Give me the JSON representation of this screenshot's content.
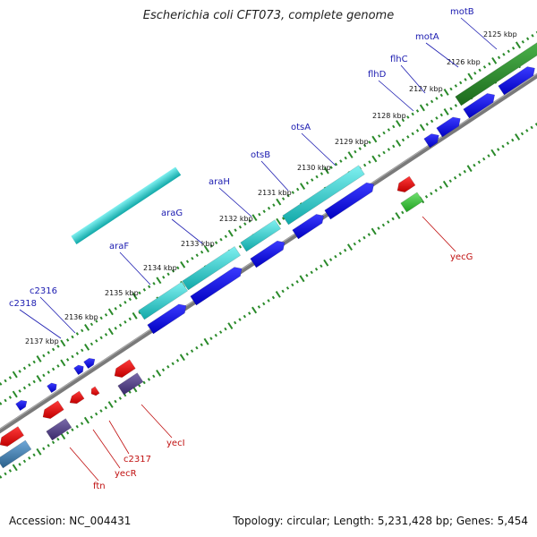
{
  "title": "Escherichia coli CFT073, complete genome",
  "footer": {
    "accession": "Accession: NC_004431",
    "topology": "Topology: circular; Length: 5,231,428 bp; Genes: 5,454"
  },
  "colors": {
    "backbone": "#7a7a7a",
    "ticks": "#2a8a2a",
    "forward_gene": "#0a0ae0",
    "operon_cyan": "#20c8c8",
    "operon_green": "#2a8a2a",
    "reverse_gene": "#e01010",
    "reverse_purple": "#5a4a8a",
    "reverse_lightgreen": "#40c840",
    "steelblue": "#4a80b0"
  },
  "kbp_labels": [
    "2125 kbp",
    "2126 kbp",
    "2127 kbp",
    "2128 kbp",
    "2129 kbp",
    "2130 kbp",
    "2131 kbp",
    "2132 kbp",
    "2133 kbp",
    "2134 kbp",
    "2135 kbp",
    "2136 kbp",
    "2137 kbp"
  ],
  "forward_genes": [
    "motB",
    "motA",
    "flhC",
    "flhD",
    "otsA",
    "otsB",
    "araH",
    "araG",
    "araF",
    "c2316",
    "c2318"
  ],
  "reverse_genes": [
    "yecG",
    "yecI",
    "c2317",
    "yecR",
    "ftn"
  ]
}
